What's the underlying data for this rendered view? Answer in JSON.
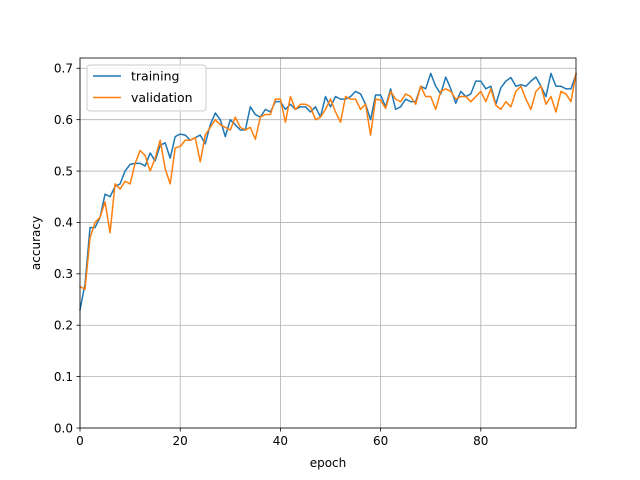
{
  "chart_data": {
    "type": "line",
    "title": "",
    "xlabel": "epoch",
    "ylabel": "accuracy",
    "xlim": [
      0,
      99
    ],
    "ylim": [
      0,
      0.72
    ],
    "xticks": [
      0,
      20,
      40,
      60,
      80
    ],
    "yticks": [
      0.0,
      0.1,
      0.2,
      0.3,
      0.4,
      0.5,
      0.6,
      0.7
    ],
    "xtick_labels": [
      "0",
      "20",
      "40",
      "60",
      "80"
    ],
    "ytick_labels": [
      "0.0",
      "0.1",
      "0.2",
      "0.3",
      "0.4",
      "0.5",
      "0.6",
      "0.7"
    ],
    "grid": true,
    "legend_position": "top-left",
    "series": [
      {
        "name": "training",
        "color": "#1f77b4",
        "values": [
          0.23,
          0.28,
          0.39,
          0.39,
          0.41,
          0.455,
          0.45,
          0.47,
          0.475,
          0.5,
          0.513,
          0.515,
          0.515,
          0.51,
          0.535,
          0.52,
          0.55,
          0.555,
          0.525,
          0.567,
          0.572,
          0.57,
          0.56,
          0.565,
          0.57,
          0.553,
          0.59,
          0.613,
          0.6,
          0.567,
          0.6,
          0.59,
          0.58,
          0.58,
          0.625,
          0.61,
          0.605,
          0.62,
          0.615,
          0.635,
          0.635,
          0.62,
          0.63,
          0.62,
          0.625,
          0.625,
          0.615,
          0.625,
          0.605,
          0.645,
          0.625,
          0.645,
          0.64,
          0.64,
          0.645,
          0.655,
          0.65,
          0.63,
          0.6,
          0.648,
          0.648,
          0.625,
          0.66,
          0.62,
          0.625,
          0.64,
          0.635,
          0.635,
          0.665,
          0.66,
          0.69,
          0.665,
          0.65,
          0.683,
          0.66,
          0.632,
          0.655,
          0.645,
          0.65,
          0.675,
          0.675,
          0.66,
          0.665,
          0.63,
          0.662,
          0.675,
          0.682,
          0.665,
          0.668,
          0.665,
          0.675,
          0.683,
          0.665,
          0.645,
          0.69,
          0.665,
          0.665,
          0.66,
          0.66,
          0.688
        ]
      },
      {
        "name": "validation",
        "color": "#ff7f0e",
        "values": [
          0.275,
          0.27,
          0.37,
          0.4,
          0.41,
          0.44,
          0.38,
          0.475,
          0.465,
          0.48,
          0.475,
          0.515,
          0.54,
          0.53,
          0.5,
          0.525,
          0.56,
          0.505,
          0.475,
          0.545,
          0.548,
          0.56,
          0.56,
          0.565,
          0.518,
          0.57,
          0.585,
          0.6,
          0.59,
          0.585,
          0.58,
          0.605,
          0.585,
          0.58,
          0.585,
          0.562,
          0.605,
          0.61,
          0.61,
          0.64,
          0.64,
          0.595,
          0.645,
          0.62,
          0.63,
          0.63,
          0.625,
          0.6,
          0.605,
          0.62,
          0.64,
          0.615,
          0.595,
          0.645,
          0.64,
          0.64,
          0.62,
          0.63,
          0.57,
          0.64,
          0.638,
          0.622,
          0.655,
          0.64,
          0.635,
          0.65,
          0.645,
          0.63,
          0.665,
          0.645,
          0.645,
          0.62,
          0.655,
          0.66,
          0.655,
          0.64,
          0.645,
          0.645,
          0.635,
          0.645,
          0.655,
          0.635,
          0.66,
          0.628,
          0.62,
          0.635,
          0.625,
          0.655,
          0.665,
          0.64,
          0.62,
          0.655,
          0.665,
          0.63,
          0.645,
          0.615,
          0.655,
          0.65,
          0.635,
          0.69
        ]
      }
    ]
  }
}
